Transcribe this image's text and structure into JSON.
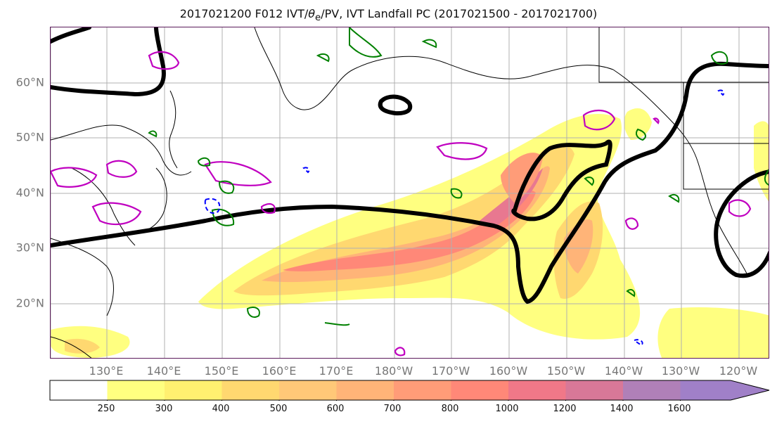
{
  "title": "2017021200 F012 IVT/θe/PV, IVT Landfall PC (2017021500 - 2017021700)",
  "title_parts": {
    "pre": "2017021200 F012 IVT/",
    "theta": "θ",
    "sub": "e",
    "post": "/PV, IVT Landfall PC (2017021500 - 2017021700)"
  },
  "map": {
    "lat_labels": [
      "60°N",
      "50°N",
      "40°N",
      "30°N",
      "20°N"
    ],
    "lon_labels": [
      "130°E",
      "140°E",
      "150°E",
      "160°E",
      "170°E",
      "180°W",
      "170°W",
      "160°W",
      "150°W",
      "140°W",
      "130°W",
      "120°W"
    ],
    "colors": {
      "pv_contour": "#c000c0",
      "theta_contour": "#008000",
      "neg_contour": "#0000ff",
      "landfall_pc": "#000000",
      "coastline": "#000000",
      "grid": "#b0b0b0"
    }
  },
  "colorbar": {
    "ticks": [
      "250",
      "300",
      "400",
      "500",
      "600",
      "700",
      "800",
      "1000",
      "1200",
      "1400",
      "1600"
    ],
    "colors": [
      "#ffffff",
      "#ffff80",
      "#fff070",
      "#ffd870",
      "#ffc878",
      "#ffb478",
      "#ff9c78",
      "#ff8878",
      "#f07888",
      "#d87898",
      "#b080b8",
      "#a080c8"
    ]
  }
}
